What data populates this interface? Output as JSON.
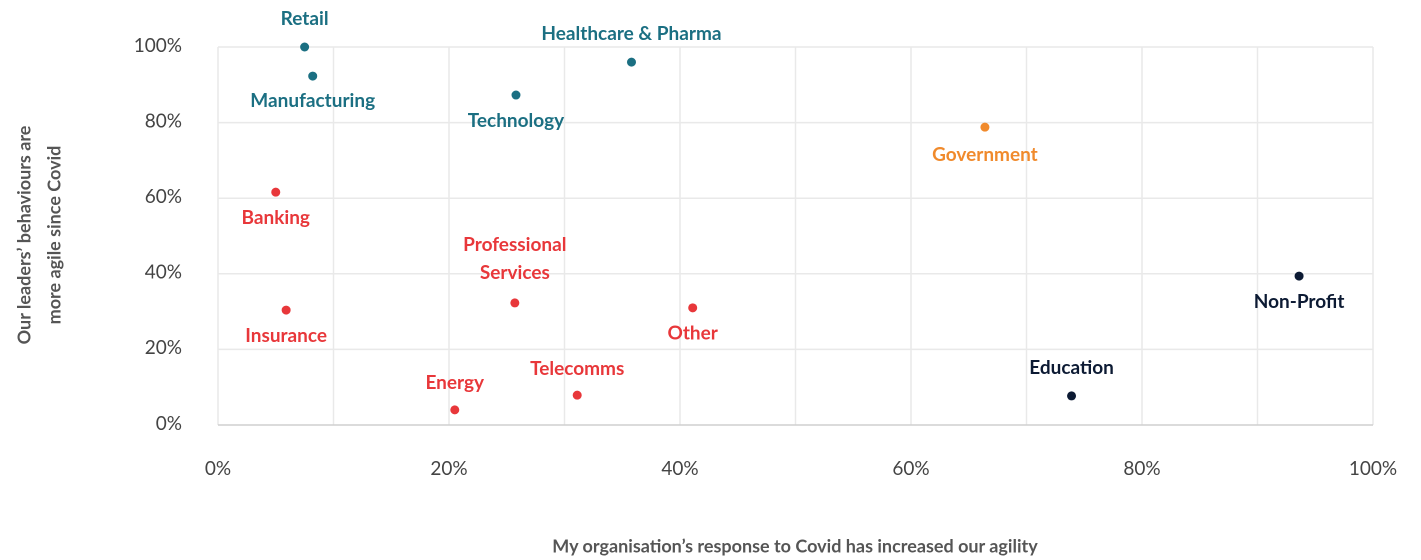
{
  "chart_data": {
    "type": "scatter",
    "x_label": "My organisation’s response to Covid has increased our agility",
    "y_label": [
      "Our leaders’ behaviours are",
      "more agile since Covid"
    ],
    "xlim": [
      0,
      100
    ],
    "ylim": [
      0,
      100
    ],
    "xticks": [
      {
        "value": 0,
        "label": "0%"
      },
      {
        "value": 20,
        "label": "20%"
      },
      {
        "value": 40,
        "label": "40%"
      },
      {
        "value": 60,
        "label": "60%"
      },
      {
        "value": 80,
        "label": "80%"
      },
      {
        "value": 100,
        "label": "100%"
      }
    ],
    "xminor": [
      10,
      30,
      50,
      70,
      90
    ],
    "yticks": [
      {
        "value": 0,
        "label": "0%"
      },
      {
        "value": 20,
        "label": "20%"
      },
      {
        "value": 40,
        "label": "40%"
      },
      {
        "value": 60,
        "label": "60%"
      },
      {
        "value": 80,
        "label": "80%"
      },
      {
        "value": 100,
        "label": "100%"
      }
    ],
    "grid": true,
    "points": [
      {
        "label": "Retail",
        "x": 7.5,
        "y": 100,
        "color": "#1b6f82"
      },
      {
        "label": "Manufacturing",
        "x": 8.2,
        "y": 92.3,
        "color": "#1b6f82"
      },
      {
        "label": "Healthcare & Pharma",
        "x": 35.8,
        "y": 96,
        "color": "#1b6f82"
      },
      {
        "label": "Technology",
        "x": 25.8,
        "y": 87.3,
        "color": "#1b6f82"
      },
      {
        "label": "Government",
        "x": 66.4,
        "y": 78.8,
        "color": "#f08a2c"
      },
      {
        "label": "Banking",
        "x": 5.0,
        "y": 61.6,
        "color": "#e8373a"
      },
      {
        "label": "Insurance",
        "x": 5.9,
        "y": 30.4,
        "color": "#e8373a"
      },
      {
        "label": "Professional Services",
        "x": 25.7,
        "y": 32.3,
        "color": "#e8373a"
      },
      {
        "label": "Other",
        "x": 41.1,
        "y": 31,
        "color": "#e8373a"
      },
      {
        "label": "Non-Profit",
        "x": 93.6,
        "y": 39.4,
        "color": "#0c1a33"
      },
      {
        "label": "Energy",
        "x": 20.5,
        "y": 4,
        "color": "#e8373a"
      },
      {
        "label": "Telecomms",
        "x": 31.1,
        "y": 7.9,
        "color": "#e8373a"
      },
      {
        "label": "Education",
        "x": 73.9,
        "y": 7.7,
        "color": "#0c1a33"
      }
    ]
  }
}
